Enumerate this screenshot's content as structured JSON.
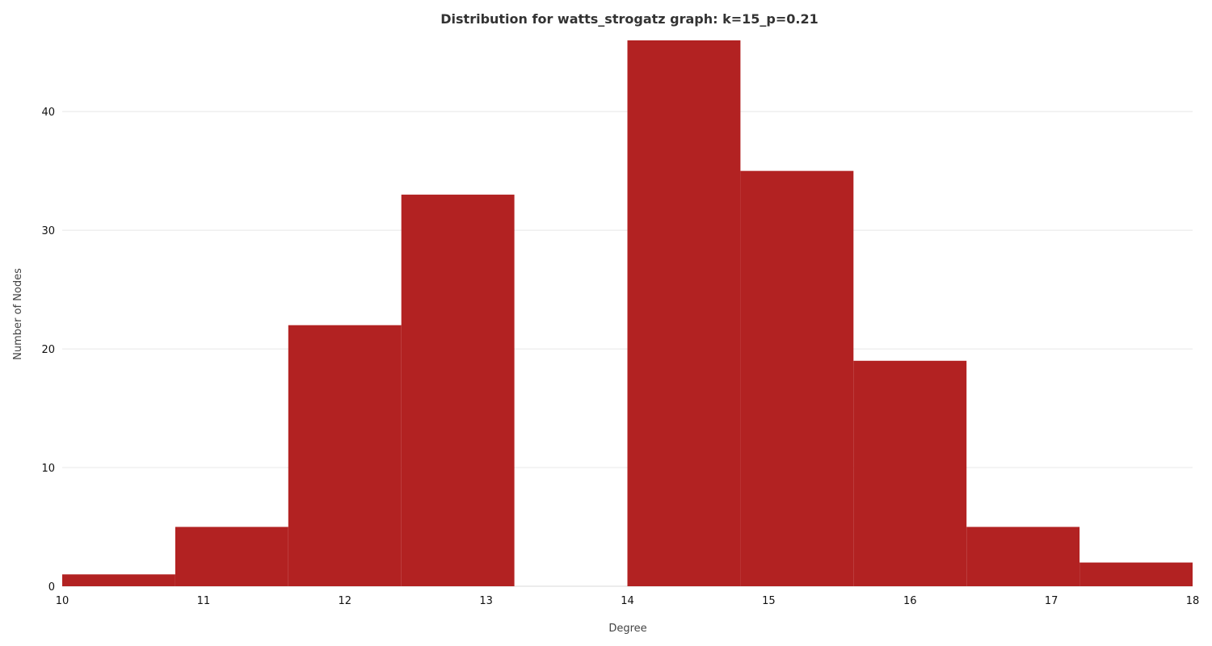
{
  "chart_data": {
    "type": "bar",
    "title": "Distribution for watts_strogatz graph: k=15_p=0.21",
    "xlabel": "Degree",
    "ylabel": "Number of Nodes",
    "bin_edges": [
      10,
      10.8,
      11.6,
      12.4,
      13.2,
      14,
      14.8,
      15.6,
      16.4,
      17.2,
      18
    ],
    "values": [
      1,
      5,
      22,
      33,
      0,
      46,
      35,
      19,
      5,
      2
    ],
    "xlim": [
      10,
      18
    ],
    "ylim": [
      0,
      46
    ],
    "xticks": [
      10,
      11,
      12,
      13,
      14,
      15,
      16,
      17,
      18
    ],
    "yticks": [
      0,
      10,
      20,
      30,
      40
    ],
    "grid": "horizontal",
    "bar_color": "#b22222"
  }
}
